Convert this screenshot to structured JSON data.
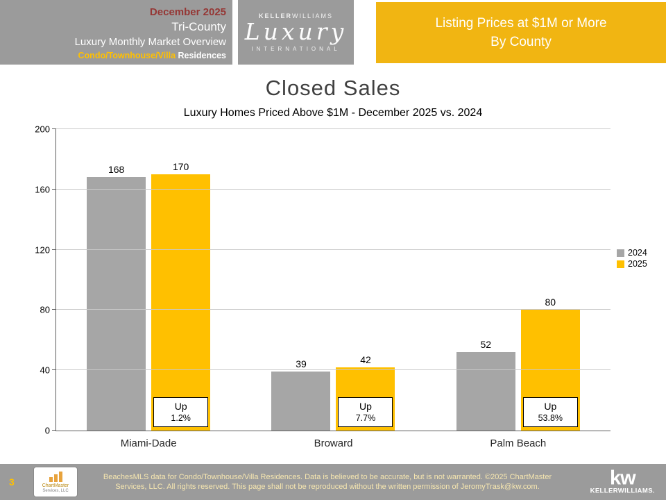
{
  "slide": {
    "header": {
      "left": {
        "date": "December 2025",
        "region": "Tri-County",
        "title": "Luxury Monthly Market Overview",
        "subtitle_gold": "Condo/Townhouse/Villa",
        "subtitle_white": " Residences"
      },
      "logo": {
        "brand_bold": "KELLER",
        "brand_light": "WILLIAMS",
        "script": "Luxury",
        "sub": "INTERNATIONAL"
      },
      "banner": {
        "line1": "Listing Prices at $1M or More",
        "line2": "By County"
      }
    },
    "footer": {
      "page_number": "3",
      "disclaimer_line1": "BeachesMLS data for Condo/Townhouse/Villa Residences.  Data is believed to be accurate, but is not warranted.   ©2025  ChartMaster",
      "disclaimer_line2": "Services, LLC.  All rights reserved. This page shall not be reproduced without the written permission of JeromyTrask@kw.com.",
      "chartmaster_line1": "ChartMaster",
      "chartmaster_line2": "Services, LLC",
      "kw_mark": "kw",
      "kw_name": "KELLERWILLIAMS."
    },
    "colors": {
      "header_gray": "#9B9B9B",
      "banner_gold": "#F1B512",
      "dark_red": "#953735",
      "gold_text": "#FFC000",
      "bar_gray": "#A6A6A6",
      "bar_gold": "#FFC000",
      "title_gray": "#404040",
      "disclaimer_text": "#F7E7B0"
    }
  },
  "chart_data": {
    "type": "bar",
    "title": "Closed Sales",
    "subtitle": "Luxury Homes Priced Above $1M - December 2025 vs. 2024",
    "categories": [
      "Miami-Dade",
      "Broward",
      "Palm Beach"
    ],
    "series": [
      {
        "name": "2024",
        "color": "#A6A6A6",
        "values": [
          168,
          39,
          52
        ]
      },
      {
        "name": "2025",
        "color": "#FFC000",
        "values": [
          170,
          42,
          80
        ]
      }
    ],
    "annotations": [
      {
        "line1": "Up",
        "line2": "1.2%"
      },
      {
        "line1": "Up",
        "line2": "7.7%"
      },
      {
        "line1": "Up",
        "line2": "53.8%"
      }
    ],
    "ylim": [
      0,
      200
    ],
    "yticks": [
      0,
      40,
      80,
      120,
      160,
      200
    ],
    "grid": true,
    "legend_position": "right"
  }
}
